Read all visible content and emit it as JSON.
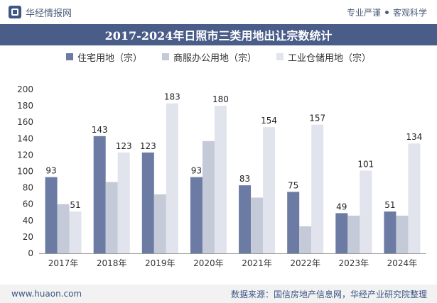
{
  "header": {
    "brand": "华经情报网",
    "slogan_left": "专业严谨",
    "slogan_right": "客观科学"
  },
  "footer": {
    "url": "www.huaon.com",
    "source": "数据来源：国信房地产信息网，华经产业研究院整理"
  },
  "colors": {
    "series": [
      "#6b7ba3",
      "#c5cad9",
      "#e1e4ec"
    ],
    "title_bar": "#4a5d88"
  },
  "chart_data": {
    "type": "bar",
    "title": "2017-2024年日照市三类用地出让宗数统计",
    "categories": [
      "2017年",
      "2018年",
      "2019年",
      "2020年",
      "2021年",
      "2022年",
      "2023年",
      "2024年"
    ],
    "series": [
      {
        "name": "住宅用地（宗）",
        "values": [
          93,
          143,
          123,
          93,
          83,
          75,
          49,
          51
        ],
        "labeled": true
      },
      {
        "name": "商服办公用地（宗）",
        "values": [
          60,
          87,
          72,
          137,
          68,
          33,
          46,
          46
        ],
        "labeled": false
      },
      {
        "name": "工业仓储用地（宗）",
        "values": [
          51,
          123,
          183,
          180,
          154,
          157,
          101,
          134
        ],
        "labeled": true
      }
    ],
    "ylim": [
      0,
      200
    ],
    "yticks": [
      0,
      20,
      40,
      60,
      80,
      100,
      120,
      140,
      160,
      180,
      200
    ],
    "xlabel": "",
    "ylabel": "",
    "grid": false,
    "legend": "top-center"
  }
}
